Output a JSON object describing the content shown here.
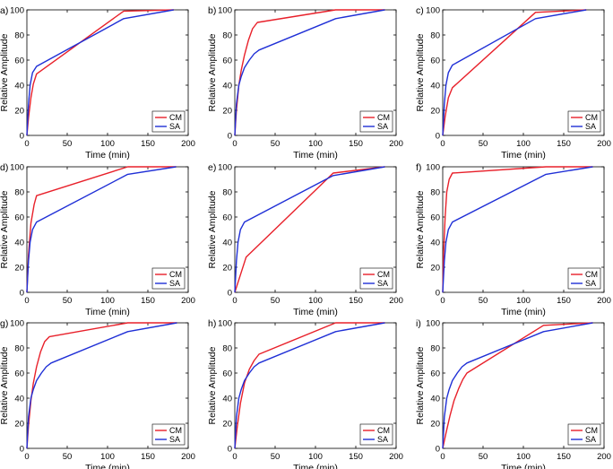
{
  "figure": {
    "colors": {
      "CM": "#e8202a",
      "SA": "#1f2fd6"
    }
  },
  "chart_data": [
    {
      "panel": "a)",
      "type": "line",
      "xlabel": "Time (min)",
      "ylabel": "Relative Amplitude",
      "xlim": [
        0,
        200
      ],
      "ylim": [
        0,
        100
      ],
      "xticks": [
        0,
        50,
        100,
        150,
        200
      ],
      "yticks": [
        0,
        20,
        40,
        60,
        80,
        100
      ],
      "legend": [
        "CM",
        "SA"
      ],
      "series": [
        {
          "name": "CM",
          "x": [
            0,
            2,
            5,
            8,
            12,
            120,
            182
          ],
          "y": [
            0,
            14,
            30,
            41,
            49,
            99,
            100
          ]
        },
        {
          "name": "SA",
          "x": [
            0,
            2,
            4,
            7,
            12,
            120,
            182
          ],
          "y": [
            0,
            25,
            40,
            50,
            55,
            93,
            100
          ]
        }
      ]
    },
    {
      "panel": "b)",
      "type": "line",
      "xlabel": "Time (min)",
      "ylabel": "Relative Amplitude",
      "xlim": [
        0,
        200
      ],
      "ylim": [
        0,
        100
      ],
      "xticks": [
        0,
        50,
        100,
        150,
        200
      ],
      "yticks": [
        0,
        20,
        40,
        60,
        80,
        100
      ],
      "legend": [
        "CM",
        "SA"
      ],
      "series": [
        {
          "name": "CM",
          "x": [
            0,
            2,
            5,
            8,
            12,
            17,
            22,
            28,
            125,
            186
          ],
          "y": [
            0,
            20,
            40,
            52,
            64,
            76,
            85,
            90,
            100,
            100
          ]
        },
        {
          "name": "SA",
          "x": [
            0,
            2,
            5,
            8,
            12,
            18,
            24,
            30,
            125,
            186
          ],
          "y": [
            0,
            25,
            40,
            47,
            54,
            60,
            65,
            68,
            93,
            100
          ]
        }
      ]
    },
    {
      "panel": "c)",
      "type": "line",
      "xlabel": "Time (min)",
      "ylabel": "Relative Amplitude",
      "xlim": [
        0,
        200
      ],
      "ylim": [
        0,
        100
      ],
      "xticks": [
        0,
        50,
        100,
        150,
        200
      ],
      "yticks": [
        0,
        20,
        40,
        60,
        80,
        100
      ],
      "legend": [
        "CM",
        "SA"
      ],
      "series": [
        {
          "name": "CM",
          "x": [
            0,
            3,
            7,
            12,
            115,
            178
          ],
          "y": [
            0,
            15,
            30,
            38,
            98,
            100
          ]
        },
        {
          "name": "SA",
          "x": [
            0,
            2,
            4,
            7,
            12,
            115,
            178
          ],
          "y": [
            0,
            25,
            40,
            50,
            56,
            93,
            100
          ]
        }
      ]
    },
    {
      "panel": "d)",
      "type": "line",
      "xlabel": "Time (min)",
      "ylabel": "Relative Amplitude",
      "xlim": [
        0,
        200
      ],
      "ylim": [
        0,
        100
      ],
      "xticks": [
        0,
        50,
        100,
        150,
        200
      ],
      "yticks": [
        0,
        20,
        40,
        60,
        80,
        100
      ],
      "legend": [
        "CM",
        "SA"
      ],
      "series": [
        {
          "name": "CM",
          "x": [
            0,
            2,
            5,
            9,
            12,
            125,
            185
          ],
          "y": [
            0,
            30,
            55,
            70,
            77,
            100,
            100
          ]
        },
        {
          "name": "SA",
          "x": [
            0,
            2,
            4,
            7,
            12,
            125,
            185
          ],
          "y": [
            0,
            25,
            40,
            50,
            56,
            94,
            100
          ]
        }
      ]
    },
    {
      "panel": "e)",
      "type": "line",
      "xlabel": "Time (min)",
      "ylabel": "Relative Amplitude",
      "xlim": [
        0,
        200
      ],
      "ylim": [
        0,
        100
      ],
      "xticks": [
        0,
        50,
        100,
        150,
        200
      ],
      "yticks": [
        0,
        20,
        40,
        60,
        80,
        100
      ],
      "legend": [
        "CM",
        "SA"
      ],
      "series": [
        {
          "name": "CM",
          "x": [
            0,
            4,
            9,
            14,
            122,
            186
          ],
          "y": [
            0,
            8,
            18,
            28,
            95,
            100
          ]
        },
        {
          "name": "SA",
          "x": [
            0,
            2,
            4,
            7,
            12,
            122,
            186
          ],
          "y": [
            0,
            25,
            40,
            50,
            56,
            93,
            100
          ]
        }
      ]
    },
    {
      "panel": "f)",
      "type": "line",
      "xlabel": "Time (min)",
      "ylabel": "Relative Amplitude",
      "xlim": [
        0,
        200
      ],
      "ylim": [
        0,
        100
      ],
      "xticks": [
        0,
        50,
        100,
        150,
        200
      ],
      "yticks": [
        0,
        20,
        40,
        60,
        80,
        100
      ],
      "legend": [
        "CM",
        "SA"
      ],
      "series": [
        {
          "name": "CM",
          "x": [
            0,
            1,
            3,
            5,
            8,
            12,
            128,
            186
          ],
          "y": [
            0,
            30,
            60,
            80,
            90,
            95,
            100,
            100
          ]
        },
        {
          "name": "SA",
          "x": [
            0,
            2,
            4,
            7,
            12,
            128,
            186
          ],
          "y": [
            0,
            25,
            40,
            50,
            56,
            94,
            100
          ]
        }
      ]
    },
    {
      "panel": "g)",
      "type": "line",
      "xlabel": "Time (min)",
      "ylabel": "Relative Amplitude",
      "xlim": [
        0,
        200
      ],
      "ylim": [
        0,
        100
      ],
      "xticks": [
        0,
        50,
        100,
        150,
        200
      ],
      "yticks": [
        0,
        20,
        40,
        60,
        80,
        100
      ],
      "legend": [
        "CM",
        "SA"
      ],
      "series": [
        {
          "name": "CM",
          "x": [
            0,
            2,
            5,
            8,
            12,
            17,
            22,
            28,
            125,
            186
          ],
          "y": [
            0,
            18,
            38,
            52,
            65,
            77,
            85,
            89,
            100,
            100
          ]
        },
        {
          "name": "SA",
          "x": [
            0,
            2,
            5,
            8,
            12,
            18,
            24,
            30,
            125,
            186
          ],
          "y": [
            0,
            25,
            40,
            47,
            54,
            60,
            65,
            68,
            93,
            100
          ]
        }
      ]
    },
    {
      "panel": "h)",
      "type": "line",
      "xlabel": "Time (min)",
      "ylabel": "Relative Amplitude",
      "xlim": [
        0,
        200
      ],
      "ylim": [
        0,
        100
      ],
      "xticks": [
        0,
        50,
        100,
        150,
        200
      ],
      "yticks": [
        0,
        20,
        40,
        60,
        80,
        100
      ],
      "legend": [
        "CM",
        "SA"
      ],
      "series": [
        {
          "name": "CM",
          "x": [
            0,
            3,
            7,
            12,
            18,
            24,
            30,
            125,
            186
          ],
          "y": [
            0,
            17,
            36,
            52,
            63,
            70,
            75,
            100,
            100
          ]
        },
        {
          "name": "SA",
          "x": [
            0,
            2,
            5,
            8,
            12,
            18,
            24,
            30,
            125,
            186
          ],
          "y": [
            0,
            25,
            40,
            47,
            54,
            60,
            65,
            68,
            93,
            100
          ]
        }
      ]
    },
    {
      "panel": "i)",
      "type": "line",
      "xlabel": "Time (min)",
      "ylabel": "Relative Amplitude",
      "xlim": [
        0,
        200
      ],
      "ylim": [
        0,
        100
      ],
      "xticks": [
        0,
        50,
        100,
        150,
        200
      ],
      "yticks": [
        0,
        20,
        40,
        60,
        80,
        100
      ],
      "legend": [
        "CM",
        "SA"
      ],
      "series": [
        {
          "name": "CM",
          "x": [
            0,
            4,
            9,
            14,
            20,
            25,
            30,
            125,
            186
          ],
          "y": [
            0,
            12,
            26,
            38,
            48,
            55,
            60,
            98,
            100
          ]
        },
        {
          "name": "SA",
          "x": [
            0,
            2,
            5,
            8,
            12,
            18,
            24,
            30,
            125,
            186
          ],
          "y": [
            0,
            25,
            40,
            47,
            54,
            60,
            65,
            68,
            93,
            100
          ]
        }
      ]
    }
  ]
}
